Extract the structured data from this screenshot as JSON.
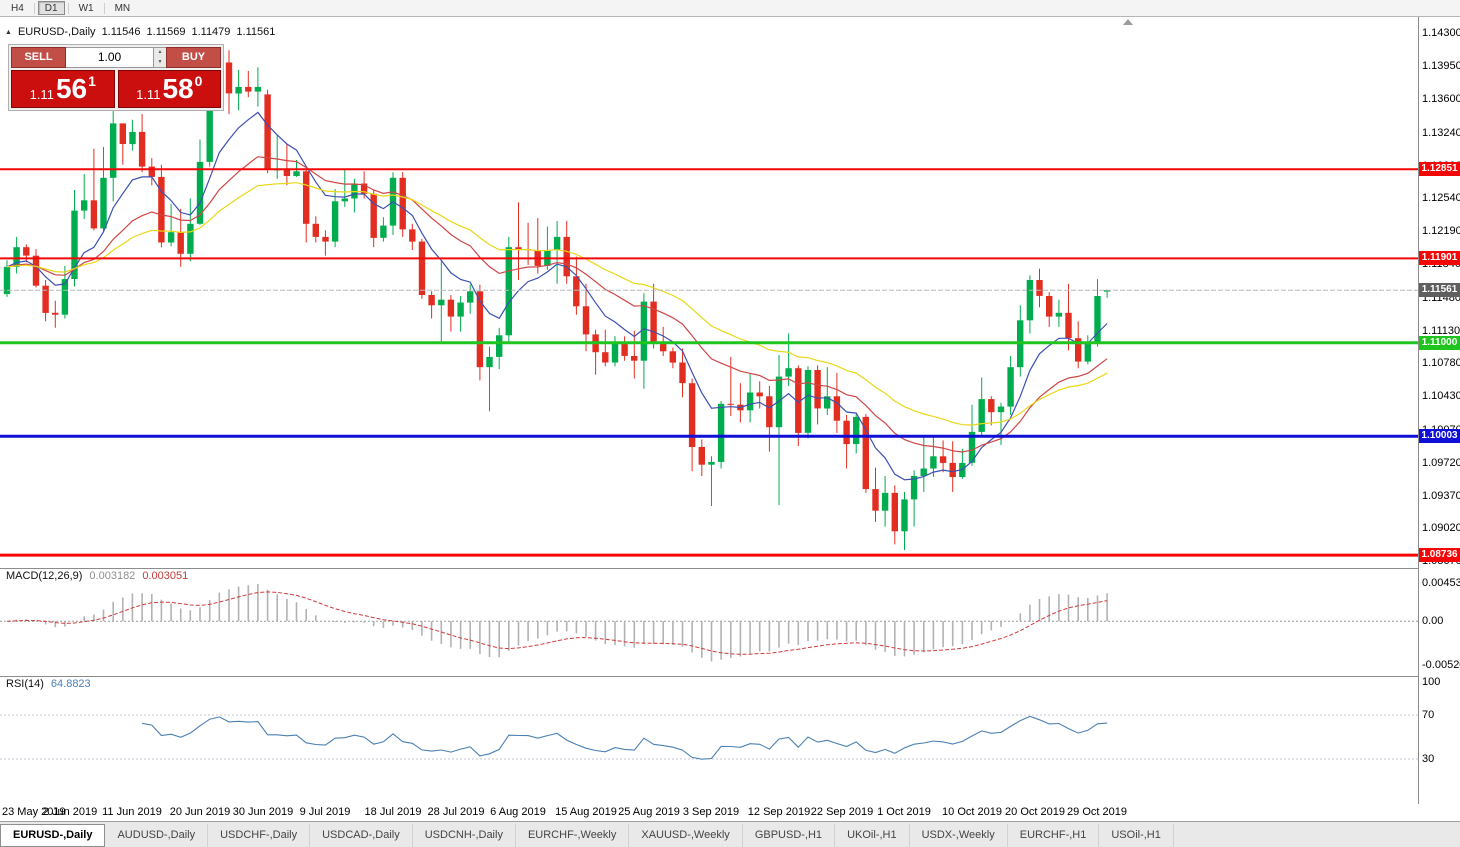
{
  "colors": {
    "bull": "#00ad4e",
    "bear": "#e22d21",
    "ma_fast": "#3c50b1",
    "ma_mid": "#cf4646",
    "ma_slow": "#e9d718",
    "macd_hist": "#b2b2b2",
    "macd_signal": "#cf3b3b",
    "rsi_line": "#4b80b4"
  },
  "toolbar": {
    "timeframes": [
      {
        "label": "H4",
        "active": false
      },
      {
        "label": "D1",
        "active": true
      },
      {
        "label": "W1",
        "active": false
      },
      {
        "label": "MN",
        "active": false
      }
    ]
  },
  "chart_header": {
    "symbol": "EURUSD-,Daily",
    "open": "1.11546",
    "high": "1.11569",
    "low": "1.11479",
    "close": "1.11561"
  },
  "trade_widget": {
    "sell_label": "SELL",
    "buy_label": "BUY",
    "volume": "1.00",
    "sell_price": {
      "prefix": "1.11",
      "pips": "56",
      "frac": "1"
    },
    "buy_price": {
      "prefix": "1.11",
      "pips": "58",
      "frac": "0"
    }
  },
  "chart_data": {
    "type": "candlestick",
    "symbol": "EURUSD",
    "timeframe": "Daily",
    "price_scale_ticks": [
      "1.14300",
      "1.13950",
      "1.13600",
      "1.13240",
      "1.12890",
      "1.12540",
      "1.12190",
      "1.11840",
      "1.11480",
      "1.11130",
      "1.10780",
      "1.10430",
      "1.10070",
      "1.09720",
      "1.09370",
      "1.09020",
      "1.08670"
    ],
    "levels": [
      {
        "price": 1.12851,
        "label": "1.12851",
        "color": "#f40606",
        "width": 2
      },
      {
        "price": 1.11901,
        "label": "1.11901",
        "color": "#f40606",
        "width": 2
      },
      {
        "price": 1.11,
        "label": "1.11000",
        "color": "#1fc41f",
        "width": 3
      },
      {
        "price": 1.10003,
        "label": "1.10003",
        "color": "#0f0fd7",
        "width": 3
      },
      {
        "price": 1.08736,
        "label": "1.08736",
        "color": "#f40606",
        "width": 3
      }
    ],
    "current_price": {
      "value": 1.11561,
      "label": "1.11561",
      "tag_color": "#5f5f5f"
    },
    "time_axis": [
      {
        "label": "23 May 2019",
        "i": 0
      },
      {
        "label": "2 Jun 2019",
        "i": 6.5
      },
      {
        "label": "11 Jun 2019",
        "i": 13
      },
      {
        "label": "20 Jun 2019",
        "i": 20
      },
      {
        "label": "30 Jun 2019",
        "i": 26.5
      },
      {
        "label": "9 Jul 2019",
        "i": 33
      },
      {
        "label": "18 Jul 2019",
        "i": 40
      },
      {
        "label": "28 Jul 2019",
        "i": 46.5
      },
      {
        "label": "6 Aug 2019",
        "i": 53
      },
      {
        "label": "15 Aug 2019",
        "i": 60
      },
      {
        "label": "25 Aug 2019",
        "i": 66.5
      },
      {
        "label": "3 Sep 2019",
        "i": 73
      },
      {
        "label": "12 Sep 2019",
        "i": 80
      },
      {
        "label": "22 Sep 2019",
        "i": 86.5
      },
      {
        "label": "1 Oct 2019",
        "i": 93
      },
      {
        "label": "10 Oct 2019",
        "i": 100
      },
      {
        "label": "20 Oct 2019",
        "i": 106.5
      },
      {
        "label": "29 Oct 2019",
        "i": 113
      }
    ],
    "macd": {
      "name": "MACD(12,26,9)",
      "value_main": "0.003182",
      "value_signal": "0.003051",
      "scale_ticks": [
        "0.004536",
        "0.00",
        "-0.005205"
      ],
      "fast": 12,
      "slow": 26,
      "signal": 9
    },
    "rsi": {
      "name": "RSI(14)",
      "value": "64.8823",
      "period": 14,
      "scale_ticks": [
        "100",
        "70",
        "30"
      ]
    },
    "candles": [
      [
        "2019-05-23",
        1.1152,
        1.1188,
        1.1149,
        1.1181
      ],
      [
        "2019-05-24",
        1.1181,
        1.1213,
        1.1174,
        1.1202
      ],
      [
        "2019-05-27",
        1.1202,
        1.1205,
        1.1186,
        1.1193
      ],
      [
        "2019-05-28",
        1.1193,
        1.12,
        1.1159,
        1.1161
      ],
      [
        "2019-05-29",
        1.1161,
        1.1167,
        1.1123,
        1.1132
      ],
      [
        "2019-05-30",
        1.1132,
        1.1145,
        1.1116,
        1.113
      ],
      [
        "2019-05-31",
        1.113,
        1.1182,
        1.1126,
        1.1168
      ],
      [
        "2019-06-03",
        1.1168,
        1.1263,
        1.116,
        1.1241
      ],
      [
        "2019-06-04",
        1.1241,
        1.128,
        1.1232,
        1.1252
      ],
      [
        "2019-06-05",
        1.1252,
        1.1307,
        1.122,
        1.1222
      ],
      [
        "2019-06-06",
        1.1222,
        1.1309,
        1.1219,
        1.1276
      ],
      [
        "2019-06-07",
        1.1276,
        1.1348,
        1.1251,
        1.1334
      ],
      [
        "2019-06-10",
        1.1334,
        1.1334,
        1.129,
        1.1312
      ],
      [
        "2019-06-11",
        1.1312,
        1.1338,
        1.1305,
        1.1325
      ],
      [
        "2019-06-12",
        1.1325,
        1.1344,
        1.1282,
        1.1288
      ],
      [
        "2019-06-13",
        1.1288,
        1.1297,
        1.1268,
        1.1277
      ],
      [
        "2019-06-14",
        1.1277,
        1.129,
        1.1202,
        1.1207
      ],
      [
        "2019-06-17",
        1.1207,
        1.1248,
        1.1203,
        1.1218
      ],
      [
        "2019-06-18",
        1.1218,
        1.1243,
        1.1181,
        1.1195
      ],
      [
        "2019-06-19",
        1.1195,
        1.1254,
        1.1187,
        1.1227
      ],
      [
        "2019-06-20",
        1.1227,
        1.1317,
        1.1226,
        1.1293
      ],
      [
        "2019-06-21",
        1.1293,
        1.1378,
        1.1288,
        1.1368
      ],
      [
        "2019-06-24",
        1.1368,
        1.14,
        1.1362,
        1.1399
      ],
      [
        "2019-06-25",
        1.1399,
        1.1412,
        1.1344,
        1.1366
      ],
      [
        "2019-06-26",
        1.1366,
        1.1391,
        1.1348,
        1.1373
      ],
      [
        "2019-06-27",
        1.1373,
        1.139,
        1.1362,
        1.1368
      ],
      [
        "2019-06-28",
        1.1368,
        1.1394,
        1.1352,
        1.1373
      ],
      [
        "2019-07-01",
        1.1365,
        1.137,
        1.1281,
        1.1285
      ],
      [
        "2019-07-02",
        1.1285,
        1.1322,
        1.1275,
        1.1285
      ],
      [
        "2019-07-03",
        1.1285,
        1.1312,
        1.1268,
        1.1278
      ],
      [
        "2019-07-04",
        1.1278,
        1.1295,
        1.1277,
        1.1283
      ],
      [
        "2019-07-05",
        1.1283,
        1.1286,
        1.1207,
        1.1227
      ],
      [
        "2019-07-08",
        1.1227,
        1.1235,
        1.1207,
        1.1213
      ],
      [
        "2019-07-09",
        1.1213,
        1.122,
        1.1193,
        1.1208
      ],
      [
        "2019-07-10",
        1.1208,
        1.1264,
        1.1202,
        1.1251
      ],
      [
        "2019-07-11",
        1.1251,
        1.1286,
        1.1245,
        1.1254
      ],
      [
        "2019-07-12",
        1.1254,
        1.1275,
        1.1239,
        1.127
      ],
      [
        "2019-07-15",
        1.127,
        1.1283,
        1.1254,
        1.1259
      ],
      [
        "2019-07-16",
        1.1259,
        1.1263,
        1.1202,
        1.1212
      ],
      [
        "2019-07-17",
        1.1212,
        1.1234,
        1.1208,
        1.1225
      ],
      [
        "2019-07-18",
        1.1225,
        1.1282,
        1.1215,
        1.1276
      ],
      [
        "2019-07-19",
        1.1276,
        1.1282,
        1.1213,
        1.1221
      ],
      [
        "2019-07-22",
        1.1221,
        1.1227,
        1.1199,
        1.1208
      ],
      [
        "2019-07-23",
        1.1208,
        1.1211,
        1.1147,
        1.1151
      ],
      [
        "2019-07-24",
        1.1151,
        1.1155,
        1.1126,
        1.114
      ],
      [
        "2019-07-25",
        1.114,
        1.1187,
        1.1101,
        1.1146
      ],
      [
        "2019-07-26",
        1.1146,
        1.1151,
        1.1112,
        1.1128
      ],
      [
        "2019-07-29",
        1.1128,
        1.115,
        1.1112,
        1.1143
      ],
      [
        "2019-07-30",
        1.1143,
        1.1162,
        1.1131,
        1.1155
      ],
      [
        "2019-07-31",
        1.1155,
        1.1162,
        1.106,
        1.1074
      ],
      [
        "2019-08-01",
        1.1074,
        1.1096,
        1.1027,
        1.1085
      ],
      [
        "2019-08-02",
        1.1085,
        1.1116,
        1.1072,
        1.1108
      ],
      [
        "2019-08-05",
        1.1108,
        1.1213,
        1.1101,
        1.1202
      ],
      [
        "2019-08-06",
        1.1202,
        1.125,
        1.1167,
        1.12
      ],
      [
        "2019-08-07",
        1.12,
        1.1228,
        1.1183,
        1.1199
      ],
      [
        "2019-08-08",
        1.1199,
        1.1233,
        1.1174,
        1.1182
      ],
      [
        "2019-08-09",
        1.1182,
        1.1224,
        1.1178,
        1.1199
      ],
      [
        "2019-08-12",
        1.1199,
        1.123,
        1.1163,
        1.1213
      ],
      [
        "2019-08-13",
        1.1213,
        1.123,
        1.1163,
        1.1171
      ],
      [
        "2019-08-14",
        1.1171,
        1.1192,
        1.113,
        1.1139
      ],
      [
        "2019-08-15",
        1.1139,
        1.1163,
        1.1091,
        1.1109
      ],
      [
        "2019-08-16",
        1.1109,
        1.1114,
        1.1066,
        1.109
      ],
      [
        "2019-08-19",
        1.109,
        1.1114,
        1.1075,
        1.1079
      ],
      [
        "2019-08-20",
        1.1079,
        1.1107,
        1.1075,
        1.11
      ],
      [
        "2019-08-21",
        1.11,
        1.1107,
        1.1081,
        1.1086
      ],
      [
        "2019-08-22",
        1.1086,
        1.1113,
        1.1062,
        1.1081
      ],
      [
        "2019-08-23",
        1.1081,
        1.1153,
        1.1051,
        1.1144
      ],
      [
        "2019-08-26",
        1.1144,
        1.1163,
        1.1094,
        1.1101
      ],
      [
        "2019-08-27",
        1.1101,
        1.1117,
        1.1086,
        1.1091
      ],
      [
        "2019-08-28",
        1.1091,
        1.1095,
        1.1073,
        1.1079
      ],
      [
        "2019-08-29",
        1.1079,
        1.1094,
        1.1042,
        1.1057
      ],
      [
        "2019-08-30",
        1.1057,
        1.1062,
        1.0963,
        1.0989
      ],
      [
        "2019-09-02",
        1.0989,
        1.0997,
        1.0958,
        1.097
      ],
      [
        "2019-09-03",
        1.097,
        1.0979,
        1.0926,
        1.0973
      ],
      [
        "2019-09-04",
        1.0973,
        1.1038,
        1.0966,
        1.1035
      ],
      [
        "2019-09-05",
        1.1035,
        1.1085,
        1.1022,
        1.1034
      ],
      [
        "2019-09-06",
        1.1034,
        1.1057,
        1.1015,
        1.1028
      ],
      [
        "2019-09-09",
        1.1028,
        1.1067,
        1.1015,
        1.1047
      ],
      [
        "2019-09-10",
        1.1047,
        1.1059,
        1.103,
        1.1043
      ],
      [
        "2019-09-11",
        1.1043,
        1.1054,
        1.0984,
        1.101
      ],
      [
        "2019-09-12",
        1.101,
        1.1087,
        1.0927,
        1.1064
      ],
      [
        "2019-09-13",
        1.1064,
        1.111,
        1.1054,
        1.1073
      ],
      [
        "2019-09-16",
        1.1073,
        1.1076,
        1.099,
        1.1004
      ],
      [
        "2019-09-17",
        1.1004,
        1.1075,
        1.0998,
        1.1071
      ],
      [
        "2019-09-18",
        1.1071,
        1.1076,
        1.1013,
        1.103
      ],
      [
        "2019-09-19",
        1.103,
        1.1074,
        1.1023,
        1.1043
      ],
      [
        "2019-09-20",
        1.1043,
        1.1068,
        1.1004,
        1.1017
      ],
      [
        "2019-09-23",
        1.1017,
        1.1023,
        1.0966,
        1.0992
      ],
      [
        "2019-09-24",
        1.0992,
        1.1024,
        1.0982,
        1.1021
      ],
      [
        "2019-09-25",
        1.1021,
        1.1024,
        1.094,
        1.0944
      ],
      [
        "2019-09-26",
        1.0944,
        1.0967,
        1.0909,
        1.0921
      ],
      [
        "2019-09-27",
        1.0921,
        1.0958,
        1.0904,
        1.094
      ],
      [
        "2019-09-30",
        1.094,
        1.0948,
        1.0885,
        1.0899
      ],
      [
        "2019-10-01",
        1.0899,
        1.0941,
        1.0879,
        1.0933
      ],
      [
        "2019-10-02",
        1.0933,
        1.0964,
        1.0904,
        1.0958
      ],
      [
        "2019-10-03",
        1.0958,
        1.0999,
        1.0941,
        1.0966
      ],
      [
        "2019-10-04",
        1.0966,
        1.0999,
        1.0957,
        1.0979
      ],
      [
        "2019-10-07",
        1.0979,
        1.0996,
        1.0962,
        1.0972
      ],
      [
        "2019-10-08",
        1.0972,
        1.0995,
        1.0941,
        1.0957
      ],
      [
        "2019-10-09",
        1.0957,
        1.0987,
        1.0955,
        1.0972
      ],
      [
        "2019-10-10",
        1.0972,
        1.1034,
        1.0969,
        1.1005
      ],
      [
        "2019-10-11",
        1.1005,
        1.1063,
        1.1001,
        1.104
      ],
      [
        "2019-10-14",
        1.104,
        1.1043,
        1.1012,
        1.1026
      ],
      [
        "2019-10-15",
        1.1026,
        1.1036,
        1.0991,
        1.1032
      ],
      [
        "2019-10-16",
        1.1032,
        1.1086,
        1.1023,
        1.1074
      ],
      [
        "2019-10-17",
        1.1074,
        1.114,
        1.1064,
        1.1124
      ],
      [
        "2019-10-18",
        1.1124,
        1.1172,
        1.111,
        1.1167
      ],
      [
        "2019-10-21",
        1.1167,
        1.1179,
        1.1138,
        1.115
      ],
      [
        "2019-10-22",
        1.115,
        1.1154,
        1.1117,
        1.1128
      ],
      [
        "2019-10-23",
        1.1128,
        1.1146,
        1.1117,
        1.1132
      ],
      [
        "2019-10-24",
        1.1132,
        1.1163,
        1.1092,
        1.1105
      ],
      [
        "2019-10-25",
        1.1105,
        1.1123,
        1.1073,
        1.108
      ],
      [
        "2019-10-28",
        1.108,
        1.1108,
        1.1077,
        1.1099
      ],
      [
        "2019-10-29",
        1.1099,
        1.1168,
        1.1096,
        1.115
      ],
      [
        "2019-10-30",
        1.11546,
        1.11569,
        1.11479,
        1.11561
      ]
    ]
  },
  "tabs": [
    {
      "label": "EURUSD-,Daily",
      "active": true
    },
    {
      "label": "AUDUSD-,Daily",
      "active": false
    },
    {
      "label": "USDCHF-,Daily",
      "active": false
    },
    {
      "label": "USDCAD-,Daily",
      "active": false
    },
    {
      "label": "USDCNH-,Daily",
      "active": false
    },
    {
      "label": "EURCHF-,Weekly",
      "active": false
    },
    {
      "label": "XAUUSD-,Weekly",
      "active": false
    },
    {
      "label": "GBPUSD-,H1",
      "active": false
    },
    {
      "label": "UKOil-,H1",
      "active": false
    },
    {
      "label": "USDX-,Weekly",
      "active": false
    },
    {
      "label": "EURCHF-,H1",
      "active": false
    },
    {
      "label": "USOil-,H1",
      "active": false
    }
  ]
}
